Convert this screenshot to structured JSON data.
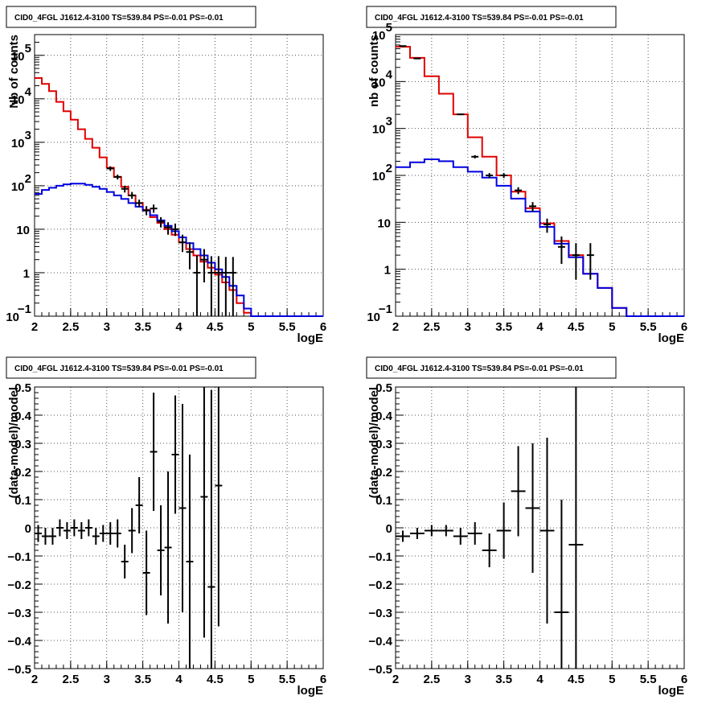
{
  "colors": {
    "data": "#000000",
    "total_model": "#e00000",
    "source_model": "#0000e0",
    "background": "#ffffff",
    "grid": "#555555"
  },
  "chart_data": [
    {
      "type": "line",
      "title": "CID0_4FGL J1612.4-3100 TS=539.84 PS=-0.01 PS=-0.01",
      "xlabel": "logE",
      "ylabel": "Nb of counts",
      "xlim": [
        2,
        6
      ],
      "ylim": [
        0.1,
        300000
      ],
      "yscale": "log",
      "grid": true,
      "x_ticks": [
        "2",
        "2.5",
        "3",
        "3.5",
        "4",
        "4.5",
        "5",
        "5.5",
        "6"
      ],
      "y_ticks": [
        {
          "v": 0.1,
          "base": "10",
          "exp": "−1"
        },
        {
          "v": 1,
          "base": "1",
          "exp": ""
        },
        {
          "v": 10,
          "base": "10",
          "exp": ""
        },
        {
          "v": 100,
          "base": "10",
          "exp": "2"
        },
        {
          "v": 1000,
          "base": "10",
          "exp": "3"
        },
        {
          "v": 10000,
          "base": "10",
          "exp": "4"
        },
        {
          "v": 100000,
          "base": "10",
          "exp": "5"
        }
      ],
      "bin_edges": [
        2.0,
        2.1,
        2.2,
        2.3,
        2.4,
        2.5,
        2.6,
        2.7,
        2.8,
        2.9,
        3.0,
        3.1,
        3.2,
        3.3,
        3.4,
        3.5,
        3.6,
        3.7,
        3.8,
        3.9,
        4.0,
        4.1,
        4.2,
        4.3,
        4.4,
        4.5,
        4.6,
        4.7,
        4.8,
        4.9,
        5.0,
        5.1,
        5.2,
        5.3,
        5.4,
        5.5,
        5.6,
        5.7,
        5.8,
        5.9,
        6.0
      ],
      "series": [
        {
          "role": "total_model",
          "values": [
            30000,
            22000,
            15000,
            8500,
            5200,
            3300,
            2000,
            1200,
            750,
            450,
            260,
            160,
            95,
            60,
            40,
            28,
            19,
            14,
            10,
            7.5,
            5,
            3.5,
            2.5,
            1.8,
            1.3,
            0.9,
            0.6,
            0.4,
            0.2,
            0.12,
            0.1,
            0.1,
            0.1,
            0.1,
            0.1,
            0.1,
            0.1,
            0.1,
            0.1,
            0.1
          ]
        },
        {
          "role": "source_model",
          "values": [
            65,
            80,
            90,
            100,
            108,
            112,
            112,
            105,
            95,
            85,
            72,
            60,
            50,
            40,
            33,
            27,
            21,
            16,
            12,
            9,
            6.5,
            4.8,
            3.5,
            2.5,
            1.7,
            1.2,
            0.8,
            0.5,
            0.3,
            0.15,
            0.1,
            0.1,
            0.1,
            0.1,
            0.1,
            0.1,
            0.1,
            0.1,
            0.1,
            0.1
          ]
        },
        {
          "role": "data",
          "points": [
            {
              "x": 3.05,
              "y": 250,
              "lo": 220,
              "hi": 280
            },
            {
              "x": 3.15,
              "y": 160,
              "lo": 140,
              "hi": 180
            },
            {
              "x": 3.25,
              "y": 85,
              "lo": 70,
              "hi": 100
            },
            {
              "x": 3.35,
              "y": 60,
              "lo": 50,
              "hi": 72
            },
            {
              "x": 3.45,
              "y": 40,
              "lo": 32,
              "hi": 48
            },
            {
              "x": 3.55,
              "y": 27,
              "lo": 21,
              "hi": 34
            },
            {
              "x": 3.65,
              "y": 30,
              "lo": 24,
              "hi": 37
            },
            {
              "x": 3.75,
              "y": 15,
              "lo": 11,
              "hi": 19
            },
            {
              "x": 3.85,
              "y": 11,
              "lo": 7.5,
              "hi": 14.5
            },
            {
              "x": 3.95,
              "y": 10,
              "lo": 7,
              "hi": 13.5
            },
            {
              "x": 4.05,
              "y": 5,
              "lo": 3,
              "hi": 7.5
            },
            {
              "x": 4.15,
              "y": 3,
              "lo": 1.2,
              "hi": 5
            },
            {
              "x": 4.25,
              "y": 1,
              "lo": 0.1,
              "hi": 2.5
            },
            {
              "x": 4.35,
              "y": 2,
              "lo": 0.6,
              "hi": 3.5
            },
            {
              "x": 4.45,
              "y": 1,
              "lo": 0.1,
              "hi": 2.4
            },
            {
              "x": 4.55,
              "y": 1,
              "lo": 0.1,
              "hi": 2.4
            },
            {
              "x": 4.65,
              "y": 1,
              "lo": 0.1,
              "hi": 2.3
            },
            {
              "x": 4.75,
              "y": 1,
              "lo": 0.1,
              "hi": 2.3
            }
          ]
        }
      ]
    },
    {
      "type": "line",
      "title": "CID0_4FGL J1612.4-3100 TS=539.84 PS=-0.01 PS=-0.01",
      "xlabel": "logE",
      "ylabel": "nb of counts",
      "xlim": [
        2,
        6
      ],
      "ylim": [
        0.1,
        100000
      ],
      "yscale": "log",
      "grid": true,
      "x_ticks": [
        "2",
        "2.5",
        "3",
        "3.5",
        "4",
        "4.5",
        "5",
        "5.5",
        "6"
      ],
      "y_ticks": [
        {
          "v": 0.1,
          "base": "10",
          "exp": "−1"
        },
        {
          "v": 1,
          "base": "1",
          "exp": ""
        },
        {
          "v": 10,
          "base": "10",
          "exp": ""
        },
        {
          "v": 100,
          "base": "10",
          "exp": "2"
        },
        {
          "v": 1000,
          "base": "10",
          "exp": "3"
        },
        {
          "v": 10000,
          "base": "10",
          "exp": "4"
        },
        {
          "v": 100000,
          "base": "10",
          "exp": "5"
        }
      ],
      "bin_edges": [
        2.0,
        2.2,
        2.4,
        2.6,
        2.8,
        3.0,
        3.2,
        3.4,
        3.6,
        3.8,
        4.0,
        4.2,
        4.4,
        4.6,
        4.8,
        5.0,
        5.2,
        5.4,
        5.6,
        5.8,
        6.0
      ],
      "series": [
        {
          "role": "total_model",
          "values": [
            55000,
            32000,
            13000,
            5500,
            2000,
            650,
            250,
            100,
            45,
            20,
            9.5,
            4,
            2,
            0.8,
            0.4,
            0.15,
            0.1,
            0.1,
            0.1,
            0.1
          ]
        },
        {
          "role": "source_model",
          "values": [
            150,
            190,
            220,
            200,
            150,
            120,
            90,
            60,
            32,
            17,
            8,
            3.5,
            1.8,
            0.8,
            0.4,
            0.15,
            0.1,
            0.1,
            0.1,
            0.1
          ]
        },
        {
          "role": "data",
          "points": [
            {
              "x": 2.1,
              "y": 57000,
              "lo": 56000,
              "hi": 58000
            },
            {
              "x": 2.3,
              "y": 31000,
              "lo": 30500,
              "hi": 31500
            },
            {
              "x": 2.9,
              "y": 2000,
              "lo": 1920,
              "hi": 2080
            },
            {
              "x": 3.1,
              "y": 250,
              "lo": 230,
              "hi": 270
            },
            {
              "x": 3.3,
              "y": 100,
              "lo": 88,
              "hi": 112
            },
            {
              "x": 3.5,
              "y": 100,
              "lo": 88,
              "hi": 112
            },
            {
              "x": 3.7,
              "y": 48,
              "lo": 40,
              "hi": 56
            },
            {
              "x": 3.9,
              "y": 22,
              "lo": 17,
              "hi": 27
            },
            {
              "x": 4.1,
              "y": 9,
              "lo": 6,
              "hi": 12
            },
            {
              "x": 4.3,
              "y": 3,
              "lo": 1.3,
              "hi": 5
            },
            {
              "x": 4.5,
              "y": 2,
              "lo": 0.6,
              "hi": 3.6
            },
            {
              "x": 4.7,
              "y": 2,
              "lo": 0.6,
              "hi": 3.6
            }
          ]
        }
      ]
    },
    {
      "type": "scatter",
      "title": "CID0_4FGL J1612.4-3100 TS=539.84 PS=-0.01 PS=-0.01",
      "xlabel": "logE",
      "ylabel": "(data-model)/model",
      "xlim": [
        2,
        6
      ],
      "ylim": [
        -0.5,
        0.5
      ],
      "grid": true,
      "x_ticks": [
        "2",
        "2.5",
        "3",
        "3.5",
        "4",
        "4.5",
        "5",
        "5.5",
        "6"
      ],
      "y_ticks": [
        "−0.5",
        "−0.4",
        "−0.3",
        "−0.2",
        "−0.1",
        "0",
        "0.1",
        "0.2",
        "0.3",
        "0.4",
        "0.5"
      ],
      "half_width": 0.05,
      "series": [
        {
          "role": "data",
          "points": [
            {
              "x": 2.05,
              "y": -0.02,
              "err": 0.03
            },
            {
              "x": 2.15,
              "y": -0.03,
              "err": 0.03
            },
            {
              "x": 2.25,
              "y": -0.03,
              "err": 0.03
            },
            {
              "x": 2.35,
              "y": 0.0,
              "err": 0.03
            },
            {
              "x": 2.45,
              "y": -0.01,
              "err": 0.03
            },
            {
              "x": 2.55,
              "y": 0.0,
              "err": 0.03
            },
            {
              "x": 2.65,
              "y": -0.01,
              "err": 0.03
            },
            {
              "x": 2.75,
              "y": 0.0,
              "err": 0.03
            },
            {
              "x": 2.85,
              "y": -0.03,
              "err": 0.03
            },
            {
              "x": 2.95,
              "y": -0.02,
              "err": 0.03
            },
            {
              "x": 3.05,
              "y": -0.02,
              "err": 0.04
            },
            {
              "x": 3.15,
              "y": -0.02,
              "err": 0.05
            },
            {
              "x": 3.25,
              "y": -0.12,
              "err": 0.06
            },
            {
              "x": 3.35,
              "y": -0.01,
              "err": 0.08
            },
            {
              "x": 3.45,
              "y": 0.08,
              "err": 0.1
            },
            {
              "x": 3.55,
              "y": -0.16,
              "err": 0.15
            },
            {
              "x": 3.65,
              "y": 0.27,
              "err": 0.21
            },
            {
              "x": 3.75,
              "y": -0.08,
              "err": 0.16
            },
            {
              "x": 3.85,
              "y": -0.07,
              "err": 0.27
            },
            {
              "x": 3.95,
              "y": 0.26,
              "err": 0.21
            },
            {
              "x": 4.05,
              "y": 0.07,
              "err": 0.37
            },
            {
              "x": 4.15,
              "y": -0.12,
              "err": 0.38
            },
            {
              "x": 4.35,
              "y": 0.11,
              "err": 0.5
            },
            {
              "x": 4.45,
              "y": -0.21,
              "err": 0.7
            },
            {
              "x": 4.55,
              "y": 0.15,
              "err": 0.5
            }
          ]
        }
      ]
    },
    {
      "type": "scatter",
      "title": "CID0_4FGL J1612.4-3100 TS=539.84 PS=-0.01 PS=-0.01",
      "xlabel": "logE",
      "ylabel": "(data-model)/model",
      "xlim": [
        2,
        6
      ],
      "ylim": [
        -0.5,
        0.5
      ],
      "grid": true,
      "x_ticks": [
        "2",
        "2.5",
        "3",
        "3.5",
        "4",
        "4.5",
        "5",
        "5.5",
        "6"
      ],
      "y_ticks": [
        "−0.5",
        "−0.4",
        "−0.3",
        "−0.2",
        "−0.1",
        "0",
        "0.1",
        "0.2",
        "0.3",
        "0.4",
        "0.5"
      ],
      "half_width": 0.1,
      "series": [
        {
          "role": "data",
          "points": [
            {
              "x": 2.1,
              "y": -0.03,
              "err": 0.02
            },
            {
              "x": 2.3,
              "y": -0.02,
              "err": 0.02
            },
            {
              "x": 2.5,
              "y": -0.01,
              "err": 0.02
            },
            {
              "x": 2.7,
              "y": -0.01,
              "err": 0.02
            },
            {
              "x": 2.9,
              "y": -0.03,
              "err": 0.03
            },
            {
              "x": 3.1,
              "y": -0.02,
              "err": 0.04
            },
            {
              "x": 3.3,
              "y": -0.08,
              "err": 0.06
            },
            {
              "x": 3.5,
              "y": -0.01,
              "err": 0.1
            },
            {
              "x": 3.7,
              "y": 0.13,
              "err": 0.16
            },
            {
              "x": 3.9,
              "y": 0.07,
              "err": 0.23
            },
            {
              "x": 4.1,
              "y": -0.01,
              "err": 0.33
            },
            {
              "x": 4.3,
              "y": -0.3,
              "err": 0.4
            },
            {
              "x": 4.5,
              "y": -0.06,
              "err": 0.62
            }
          ]
        }
      ]
    }
  ]
}
